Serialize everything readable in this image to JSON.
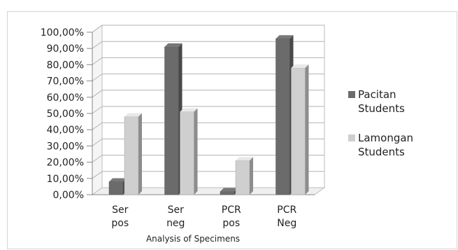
{
  "chart_data": {
    "type": "bar",
    "title": "",
    "xlabel": "Analysis of Specimens",
    "ylabel": "",
    "categories": [
      [
        "Ser",
        "pos"
      ],
      [
        "Ser",
        "neg"
      ],
      [
        "PCR",
        "pos"
      ],
      [
        "PCR",
        "Neg"
      ]
    ],
    "yticks": [
      "0,00%",
      "10,00%",
      "20,00%",
      "30,00%",
      "40,00%",
      "50,00%",
      "60,00%",
      "70,00%",
      "80,00%",
      "90,00%",
      "100,00%"
    ],
    "ylim": [
      0,
      100
    ],
    "grid": true,
    "legend_position": "right",
    "series": [
      {
        "name": [
          "Pacitan",
          "Students"
        ],
        "values": [
          8,
          91,
          2,
          96
        ],
        "color": "#6b6b6b"
      },
      {
        "name": [
          "Lamongan",
          "Students"
        ],
        "values": [
          48,
          51,
          21,
          78
        ],
        "color": "#cfcfcf"
      }
    ]
  }
}
